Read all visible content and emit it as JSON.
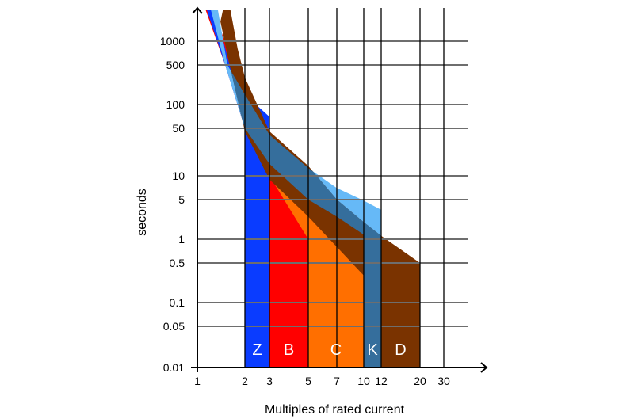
{
  "chart_data": {
    "type": "area",
    "title": "",
    "xlabel": "Multiples of rated current",
    "ylabel": "seconds",
    "x_scale": "log",
    "y_scale": "log",
    "xlim": [
      1,
      37
    ],
    "ylim": [
      0.01,
      3000
    ],
    "x_ticks": [
      1,
      2,
      3,
      5,
      7,
      10,
      12,
      20,
      30
    ],
    "y_ticks": [
      0.01,
      0.05,
      0.1,
      0.5,
      1,
      5,
      10,
      50,
      100,
      500,
      1000
    ],
    "grid": true,
    "colors": {
      "Z": "#0a3cff",
      "B": "#ff0000",
      "C": "#ff6f00",
      "K": "#66b9f7",
      "K_overlap": "#356e9c",
      "D": "#7a3300"
    },
    "bands": [
      {
        "label": "B",
        "magnetic_trip": [
          3,
          5
        ],
        "polygon": [
          [
            1.13,
            3000
          ],
          [
            1.5,
            500
          ],
          [
            2,
            50
          ],
          [
            3,
            10
          ],
          [
            3,
            0.01
          ],
          [
            5,
            0.01
          ],
          [
            5,
            12
          ],
          [
            3,
            30
          ],
          [
            2,
            100
          ],
          [
            1.5,
            1000
          ],
          [
            1.25,
            3000
          ]
        ]
      },
      {
        "label": "Z",
        "magnetic_trip": [
          2,
          3
        ],
        "polygon": [
          [
            1.15,
            3000
          ],
          [
            1.3,
            3000
          ],
          [
            1.6,
            500
          ],
          [
            2,
            150
          ],
          [
            3,
            70
          ],
          [
            3,
            0.01
          ],
          [
            2,
            0.01
          ],
          [
            2,
            50
          ],
          [
            1.5,
            500
          ]
        ]
      },
      {
        "label": "C",
        "magnetic_trip": [
          5,
          10
        ],
        "polygon": [
          [
            2.6,
            25
          ],
          [
            3,
            10
          ],
          [
            5,
            1
          ],
          [
            5,
            0.01
          ],
          [
            10,
            0.01
          ],
          [
            10,
            0.3
          ],
          [
            5,
            3
          ],
          [
            3,
            15
          ]
        ]
      },
      {
        "label": "K",
        "magnetic_trip": [
          10,
          12
        ],
        "polygon": [
          [
            1.22,
            3000
          ],
          [
            1.35,
            3000
          ],
          [
            1.55,
            500
          ],
          [
            2,
            150
          ],
          [
            3,
            40
          ],
          [
            5,
            13
          ],
          [
            7,
            7
          ],
          [
            10,
            4.8
          ],
          [
            12,
            3.3
          ],
          [
            12,
            0.01
          ],
          [
            10,
            0.01
          ],
          [
            10,
            1.2
          ],
          [
            7,
            2.5
          ],
          [
            5,
            5
          ],
          [
            3,
            15
          ],
          [
            2,
            50
          ],
          [
            1.5,
            500
          ]
        ]
      },
      {
        "label": "D",
        "magnetic_trip": [
          10,
          20
        ],
        "polygon": [
          [
            1.45,
            3000
          ],
          [
            1.62,
            3000
          ],
          [
            1.8,
            800
          ],
          [
            2,
            300
          ],
          [
            3,
            45
          ],
          [
            5,
            14
          ],
          [
            7,
            5
          ],
          [
            10,
            2
          ],
          [
            12,
            1.15
          ],
          [
            20,
            0.5
          ],
          [
            20,
            0.01
          ],
          [
            10,
            0.01
          ],
          [
            10,
            0.3
          ],
          [
            7,
            0.8
          ],
          [
            5,
            2.5
          ],
          [
            3,
            9
          ],
          [
            2,
            45
          ],
          [
            1.6,
            500
          ],
          [
            1.4,
            2000
          ]
        ]
      }
    ],
    "band_labels": [
      {
        "label": "Z",
        "from": 2,
        "to": 3
      },
      {
        "label": "B",
        "from": 3,
        "to": 5
      },
      {
        "label": "C",
        "from": 5,
        "to": 10
      },
      {
        "label": "K",
        "from": 10,
        "to": 12
      },
      {
        "label": "D",
        "from": 12,
        "to": 20
      }
    ]
  }
}
